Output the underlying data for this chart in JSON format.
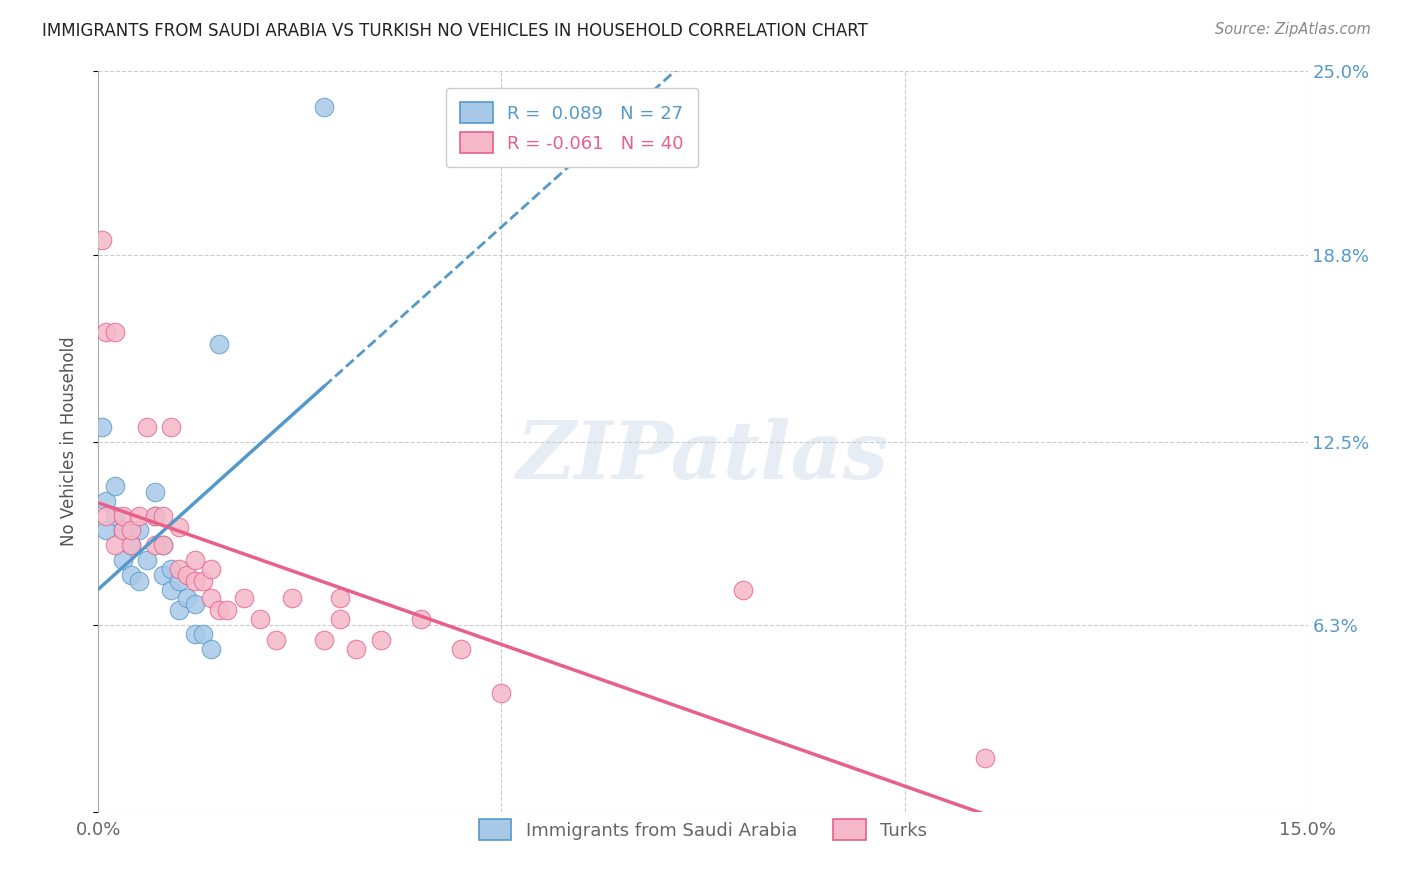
{
  "title": "IMMIGRANTS FROM SAUDI ARABIA VS TURKISH NO VEHICLES IN HOUSEHOLD CORRELATION CHART",
  "source": "Source: ZipAtlas.com",
  "xlabel_bottom": "Immigrants from Saudi Arabia",
  "xlabel_turks": "Turks",
  "ylabel": "No Vehicles in Household",
  "xlim": [
    0.0,
    0.15
  ],
  "ylim": [
    0.0,
    0.25
  ],
  "ytick_values": [
    0.0,
    0.063,
    0.125,
    0.188,
    0.25
  ],
  "ytick_labels": [
    "",
    "6.3%",
    "12.5%",
    "18.8%",
    "25.0%"
  ],
  "xtick_values": [
    0.0,
    0.05,
    0.1,
    0.15
  ],
  "xtick_labels": [
    "0.0%",
    "",
    "",
    "15.0%"
  ],
  "legend_blue_r": "R =  0.089",
  "legend_blue_n": "N = 27",
  "legend_pink_r": "R = -0.061",
  "legend_pink_n": "N = 40",
  "blue_color": "#a8c8e8",
  "pink_color": "#f5b8c8",
  "blue_line_color": "#5599cc",
  "pink_line_color": "#e8608a",
  "watermark": "ZIPatlas",
  "blue_r": 0.089,
  "blue_n": 27,
  "pink_r": -0.061,
  "pink_n": 40,
  "blue_points_x": [
    0.0005,
    0.001,
    0.001,
    0.002,
    0.002,
    0.003,
    0.003,
    0.004,
    0.004,
    0.005,
    0.005,
    0.006,
    0.007,
    0.007,
    0.008,
    0.008,
    0.009,
    0.009,
    0.01,
    0.01,
    0.011,
    0.012,
    0.012,
    0.013,
    0.014,
    0.015,
    0.028
  ],
  "blue_points_y": [
    0.13,
    0.095,
    0.105,
    0.1,
    0.11,
    0.085,
    0.095,
    0.08,
    0.09,
    0.078,
    0.095,
    0.085,
    0.1,
    0.108,
    0.08,
    0.09,
    0.075,
    0.082,
    0.068,
    0.078,
    0.072,
    0.06,
    0.07,
    0.06,
    0.055,
    0.158,
    0.238
  ],
  "pink_points_x": [
    0.0005,
    0.001,
    0.001,
    0.002,
    0.002,
    0.003,
    0.003,
    0.004,
    0.004,
    0.005,
    0.006,
    0.007,
    0.007,
    0.008,
    0.008,
    0.009,
    0.01,
    0.01,
    0.011,
    0.012,
    0.012,
    0.013,
    0.014,
    0.014,
    0.015,
    0.016,
    0.018,
    0.02,
    0.022,
    0.024,
    0.028,
    0.03,
    0.03,
    0.032,
    0.035,
    0.04,
    0.045,
    0.05,
    0.08,
    0.11
  ],
  "pink_points_y": [
    0.193,
    0.1,
    0.162,
    0.162,
    0.09,
    0.095,
    0.1,
    0.09,
    0.095,
    0.1,
    0.13,
    0.1,
    0.09,
    0.09,
    0.1,
    0.13,
    0.096,
    0.082,
    0.08,
    0.078,
    0.085,
    0.078,
    0.082,
    0.072,
    0.068,
    0.068,
    0.072,
    0.065,
    0.058,
    0.072,
    0.058,
    0.065,
    0.072,
    0.055,
    0.058,
    0.065,
    0.055,
    0.04,
    0.075,
    0.018
  ]
}
